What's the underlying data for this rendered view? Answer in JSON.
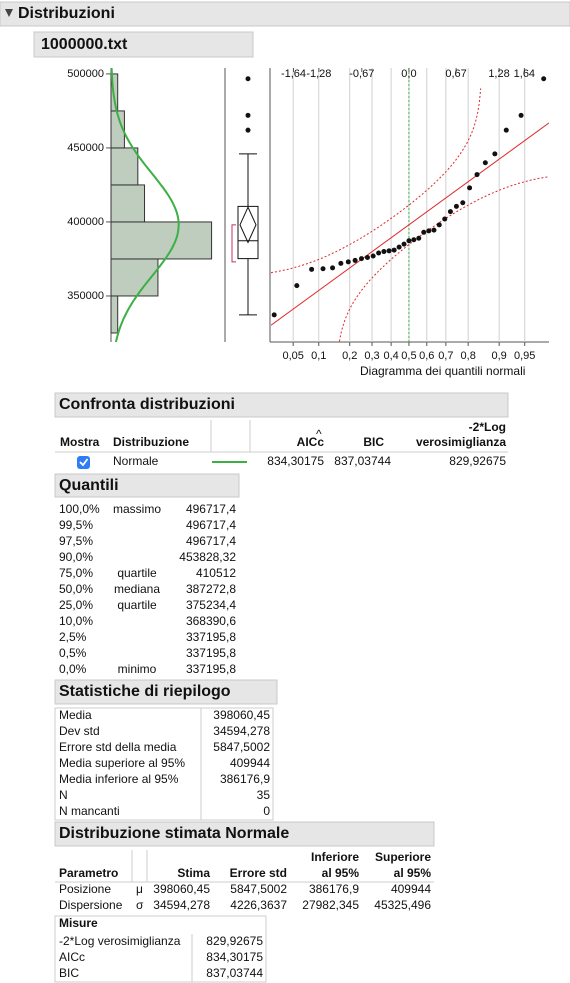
{
  "header": {
    "title": "Distribuzioni",
    "file": "1000000.txt"
  },
  "chart_data": {
    "type": "histogram",
    "bins": [
      325000,
      350000,
      375000,
      400000,
      425000,
      450000,
      475000,
      500000
    ],
    "counts": [
      1,
      7,
      15,
      5,
      4,
      2,
      1
    ],
    "color": "#bfcdbf",
    "ylim": [
      318900,
      504000
    ],
    "yticks": [
      350000,
      400000,
      450000,
      500000
    ],
    "xlim": [
      0,
      17
    ],
    "fit": {
      "mean": 398060.45,
      "sd": 34594.278,
      "color": "#3cb043"
    },
    "box": {
      "whisker_low": 337195.8,
      "q1": 375234.4,
      "median": 387272.8,
      "q3": 410512,
      "whisker_high": 446000,
      "mean": 398060.45,
      "mean_ci": [
        386176.9,
        409944
      ]
    },
    "quantile_plot": {
      "values": [
        337195.8,
        357000,
        368000,
        368400,
        369000,
        372000,
        373000,
        374000,
        375234.4,
        376000,
        377000,
        379000,
        380000,
        380500,
        381000,
        383000,
        385000,
        387272.8,
        388000,
        389000,
        393000,
        394000,
        394500,
        398000,
        402000,
        407000,
        410512,
        413000,
        423000,
        432000,
        440000,
        446000,
        462000,
        472000,
        496717.4
      ],
      "xlim": [
        -1.96,
        1.99
      ],
      "xticks_top": [
        {
          "value": -1.64,
          "label": "-1,64"
        },
        {
          "value": -1.28,
          "label": "-1,28"
        },
        {
          "value": -0.67,
          "label": "-0,67"
        },
        {
          "value": 0,
          "label": "0,0"
        },
        {
          "value": 0.67,
          "label": "0,67"
        },
        {
          "value": 1.28,
          "label": "1,28"
        },
        {
          "value": 1.64,
          "label": "1,64"
        }
      ],
      "xticks_bottom": [
        {
          "value": -1.645,
          "label": "0,05"
        },
        {
          "value": -1.2816,
          "label": "0,1"
        },
        {
          "value": -0.8416,
          "label": "0,2"
        },
        {
          "value": -0.5244,
          "label": "0,3"
        },
        {
          "value": -0.2533,
          "label": "0,4"
        },
        {
          "value": 0,
          "label": "0,5"
        },
        {
          "value": 0.2533,
          "label": "0,6"
        },
        {
          "value": 0.5244,
          "label": "0,7"
        },
        {
          "value": 0.8416,
          "label": "0,8"
        },
        {
          "value": 1.2816,
          "label": "0,9"
        },
        {
          "value": 1.645,
          "label": "0,95"
        }
      ],
      "xlabel": "Diagramma dei quantili normali",
      "line_color": "#e0282a"
    }
  },
  "compare": {
    "title": "Confronta distribuzioni",
    "columns": [
      "Mostra",
      "Distribuzione",
      "AICc",
      "BIC"
    ],
    "col_last": [
      "-2*Log",
      "verosimiglianza"
    ],
    "rows": [
      {
        "shown": true,
        "name": "Normale",
        "aicc": "834,30175",
        "bic": "837,03744",
        "loglik": "829,92675"
      }
    ]
  },
  "quantiles": {
    "title": "Quantili",
    "rows": [
      {
        "pct": "100,0%",
        "label": "massimo",
        "value": "496717,4"
      },
      {
        "pct": "99,5%",
        "value": "496717,4"
      },
      {
        "pct": "97,5%",
        "value": "496717,4"
      },
      {
        "pct": "90,0%",
        "value": "453828,32"
      },
      {
        "pct": "75,0%",
        "label": "quartile",
        "value": "410512"
      },
      {
        "pct": "50,0%",
        "label": "mediana",
        "value": "387272,8"
      },
      {
        "pct": "25,0%",
        "label": "quartile",
        "value": "375234,4"
      },
      {
        "pct": "10,0%",
        "value": "368390,6"
      },
      {
        "pct": "2,5%",
        "value": "337195,8"
      },
      {
        "pct": "0,5%",
        "value": "337195,8"
      },
      {
        "pct": "0,0%",
        "label": "minimo",
        "value": "337195,8"
      }
    ]
  },
  "summary": {
    "title": "Statistiche di riepilogo",
    "rows": [
      [
        "Media",
        "398060,45"
      ],
      [
        "Dev std",
        "34594,278"
      ],
      [
        "Errore std della media",
        "5847,5002"
      ],
      [
        "Media superiore al 95%",
        "409944"
      ],
      [
        "Media inferiore al 95%",
        "386176,9"
      ],
      [
        "N",
        "35"
      ],
      [
        "N mancanti",
        "0"
      ]
    ]
  },
  "fitted": {
    "title": "Distribuzione stimata Normale",
    "columns": [
      "Parametro",
      "Stima",
      "Errore std",
      [
        "Inferiore",
        "al 95%"
      ],
      [
        "Superiore",
        "al 95%"
      ]
    ],
    "rows": [
      [
        "Posizione",
        "μ",
        "398060,45",
        "5847,5002",
        "386176,9",
        "409944"
      ],
      [
        "Dispersione",
        "σ",
        "34594,278",
        "4226,3637",
        "27982,345",
        "45325,496"
      ]
    ],
    "measures": {
      "title": "Misure",
      "rows": [
        [
          "-2*Log verosimiglianza",
          "829,92675"
        ],
        [
          "AICc",
          "834,30175"
        ],
        [
          "BIC",
          "837,03744"
        ]
      ]
    }
  }
}
